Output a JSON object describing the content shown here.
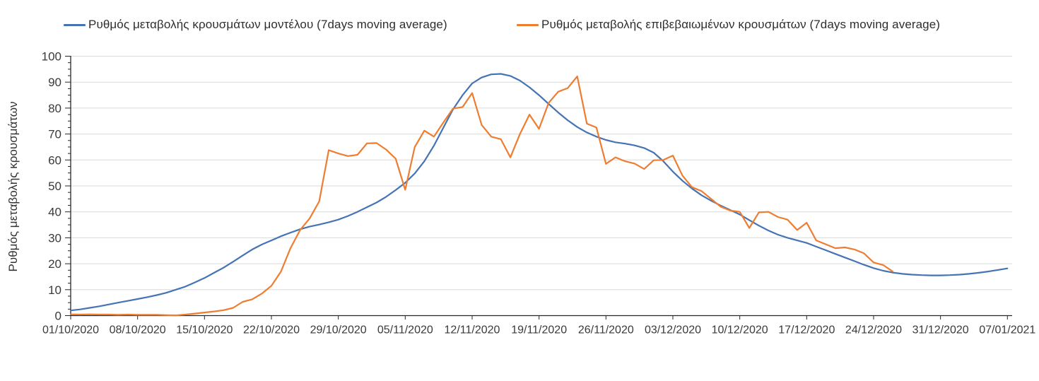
{
  "chart_data": {
    "type": "line",
    "title": "",
    "xlabel": "",
    "ylabel": "Ρυθμός μεταβολής κρουσμάτων",
    "ylim": [
      0,
      100
    ],
    "y_ticks": [
      "0",
      "10",
      "20",
      "30",
      "40",
      "50",
      "60",
      "70",
      "80",
      "90",
      "100"
    ],
    "y_minor_tick_step": 2.5,
    "grid": "horizontal",
    "legend_position": "top",
    "x_start_date": "01/10/2020",
    "x_tick_interval_days": 7,
    "x_tick_labels": [
      "01/10/2020",
      "08/10/2020",
      "15/10/2020",
      "22/10/2020",
      "29/10/2020",
      "05/11/2020",
      "12/11/2020",
      "19/11/2020",
      "26/11/2020",
      "03/12/2020",
      "10/12/2020",
      "17/12/2020",
      "24/12/2020",
      "31/12/2020",
      "07/01/2021"
    ],
    "series": [
      {
        "name": "Ρυθμός μεταβολής κρουσμάτων μοντέλου (7days moving average)",
        "color": "#4573b4",
        "values": [
          2.0,
          2.4,
          3.0,
          3.6,
          4.3,
          5.0,
          5.7,
          6.4,
          7.1,
          7.9,
          8.8,
          10.0,
          11.2,
          12.8,
          14.5,
          16.5,
          18.5,
          20.8,
          23.2,
          25.5,
          27.4,
          29.0,
          30.6,
          32.0,
          33.3,
          34.3,
          35.1,
          36.0,
          37.0,
          38.4,
          40.0,
          41.8,
          43.6,
          45.8,
          48.4,
          51.2,
          54.8,
          59.5,
          65.5,
          72.5,
          79.5,
          85.0,
          89.5,
          91.8,
          93.0,
          93.2,
          92.4,
          90.6,
          88.0,
          85.0,
          81.6,
          78.3,
          75.3,
          72.7,
          70.6,
          69.0,
          67.7,
          66.8,
          66.3,
          65.6,
          64.6,
          62.8,
          59.5,
          55.5,
          52.0,
          49.0,
          46.4,
          44.3,
          42.4,
          40.7,
          39.0,
          36.8,
          34.7,
          32.8,
          31.2,
          30.0,
          29.0,
          28.0,
          26.6,
          25.2,
          23.8,
          22.4,
          21.0,
          19.6,
          18.3,
          17.3,
          16.6,
          16.1,
          15.8,
          15.6,
          15.5,
          15.5,
          15.6,
          15.8,
          16.1,
          16.5,
          17.0,
          17.6,
          18.2
        ]
      },
      {
        "name": "Ρυθμός μεταβολής επιβεβαιωμένων κρουσμάτων (7days moving average)",
        "color": "#ed7d31",
        "values": [
          0.5,
          0.4,
          0.5,
          0.4,
          0.4,
          0.3,
          0.4,
          0.3,
          0.3,
          0.3,
          0.2,
          0.1,
          0.4,
          0.8,
          1.2,
          1.6,
          2.1,
          3.0,
          5.3,
          6.3,
          8.5,
          11.5,
          17.0,
          26.0,
          33.0,
          37.5,
          44.0,
          63.8,
          62.5,
          61.5,
          62.0,
          66.4,
          66.5,
          64.0,
          60.5,
          48.5,
          65.0,
          71.3,
          69.0,
          74.5,
          79.8,
          80.4,
          85.8,
          73.5,
          69.0,
          68.0,
          61.0,
          70.0,
          77.5,
          72.0,
          82.0,
          86.3,
          87.7,
          92.2,
          74.0,
          72.5,
          58.5,
          61.0,
          59.5,
          58.6,
          56.5,
          59.9,
          60.0,
          61.7,
          54.0,
          49.5,
          48.0,
          45.0,
          42.0,
          40.5,
          40.0,
          33.8,
          39.8,
          40.0,
          38.0,
          37.0,
          33.0,
          35.8,
          29.0,
          27.5,
          26.0,
          26.3,
          25.5,
          24.0,
          20.5,
          19.5,
          17.0
        ]
      }
    ],
    "colors": {
      "grid": "#d9d9d9",
      "axis": "#262626",
      "tick_label": "#3a3a3a"
    }
  }
}
